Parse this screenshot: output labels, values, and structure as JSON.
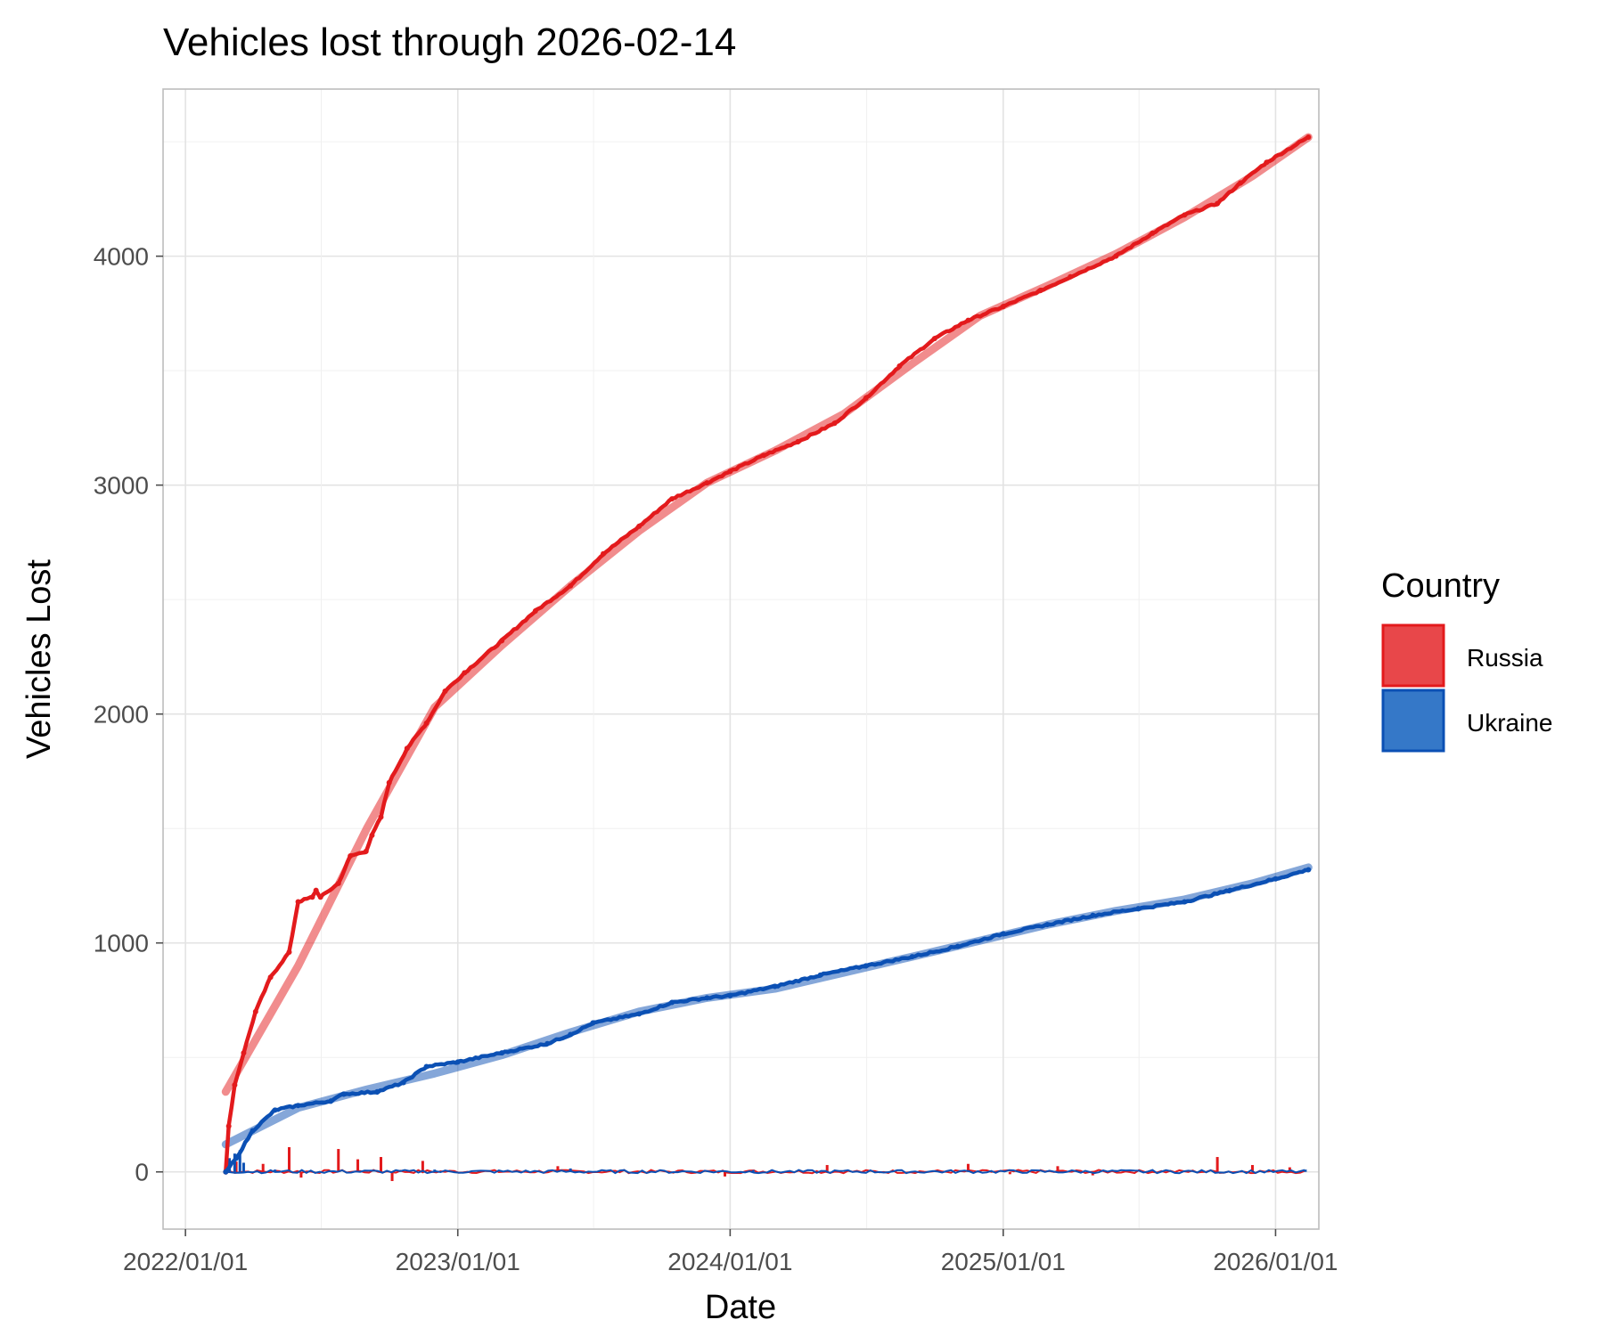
{
  "chart_data": {
    "type": "line",
    "title": "Vehicles lost through 2026-02-14",
    "xlabel": "Date",
    "ylabel": "Vehicles Lost",
    "grid": true,
    "legend": {
      "title": "Country",
      "placement": "right",
      "entries": [
        {
          "label": "Russia",
          "color": "#e31a1c",
          "fill": "#e8474a"
        },
        {
          "label": "Ukraine",
          "color": "#0b50b4",
          "fill": "#3578c8"
        }
      ]
    },
    "x_range": [
      "2021-12-02",
      "2026-02-28"
    ],
    "x_ticks": [
      "2022/01/01",
      "2023/01/01",
      "2024/01/01",
      "2025/01/01",
      "2026/01/01"
    ],
    "ylim": [
      -250,
      4730
    ],
    "y_ticks": [
      0,
      1000,
      2000,
      3000,
      4000
    ],
    "series": [
      {
        "name": "Russia",
        "kind": "cumulative",
        "color": "#e31a1c",
        "points": [
          [
            "2022-02-24",
            0
          ],
          [
            "2022-02-28",
            200
          ],
          [
            "2022-03-08",
            380
          ],
          [
            "2022-03-20",
            520
          ],
          [
            "2022-04-05",
            700
          ],
          [
            "2022-04-25",
            850
          ],
          [
            "2022-05-20",
            960
          ],
          [
            "2022-06-01",
            1180
          ],
          [
            "2022-06-20",
            1200
          ],
          [
            "2022-06-25",
            1230
          ],
          [
            "2022-07-01",
            1200
          ],
          [
            "2022-07-25",
            1260
          ],
          [
            "2022-08-10",
            1380
          ],
          [
            "2022-08-31",
            1400
          ],
          [
            "2022-09-08",
            1470
          ],
          [
            "2022-09-20",
            1550
          ],
          [
            "2022-10-01",
            1700
          ],
          [
            "2022-10-25",
            1850
          ],
          [
            "2022-11-20",
            1960
          ],
          [
            "2022-12-15",
            2100
          ],
          [
            "2023-01-10",
            2180
          ],
          [
            "2023-03-01",
            2320
          ],
          [
            "2023-04-15",
            2450
          ],
          [
            "2023-06-01",
            2560
          ],
          [
            "2023-07-15",
            2700
          ],
          [
            "2023-09-01",
            2820
          ],
          [
            "2023-10-15",
            2940
          ],
          [
            "2023-12-01",
            3010
          ],
          [
            "2024-01-01",
            3060
          ],
          [
            "2024-02-15",
            3130
          ],
          [
            "2024-04-01",
            3190
          ],
          [
            "2024-05-20",
            3270
          ],
          [
            "2024-07-01",
            3380
          ],
          [
            "2024-08-15",
            3520
          ],
          [
            "2024-10-01",
            3640
          ],
          [
            "2024-11-15",
            3720
          ],
          [
            "2025-01-01",
            3780
          ],
          [
            "2025-02-20",
            3850
          ],
          [
            "2025-04-01",
            3910
          ],
          [
            "2025-06-01",
            4000
          ],
          [
            "2025-07-20",
            4100
          ],
          [
            "2025-09-01",
            4180
          ],
          [
            "2025-10-15",
            4230
          ],
          [
            "2025-11-15",
            4320
          ],
          [
            "2025-12-20",
            4410
          ],
          [
            "2026-02-14",
            4520
          ]
        ],
        "trend": [
          [
            "2022-02-24",
            350
          ],
          [
            "2022-06-01",
            900
          ],
          [
            "2022-09-01",
            1500
          ],
          [
            "2022-12-01",
            2030
          ],
          [
            "2023-03-01",
            2300
          ],
          [
            "2023-06-01",
            2560
          ],
          [
            "2023-09-01",
            2800
          ],
          [
            "2023-12-01",
            3010
          ],
          [
            "2024-03-01",
            3150
          ],
          [
            "2024-06-01",
            3310
          ],
          [
            "2024-09-01",
            3530
          ],
          [
            "2024-12-01",
            3740
          ],
          [
            "2025-03-01",
            3870
          ],
          [
            "2025-06-01",
            4010
          ],
          [
            "2025-09-01",
            4170
          ],
          [
            "2025-12-01",
            4350
          ],
          [
            "2026-02-14",
            4520
          ]
        ],
        "daily": [
          [
            "2022-03-10",
            45
          ],
          [
            "2022-04-15",
            35
          ],
          [
            "2022-05-20",
            108
          ],
          [
            "2022-06-05",
            -25
          ],
          [
            "2022-07-25",
            100
          ],
          [
            "2022-08-20",
            55
          ],
          [
            "2022-09-20",
            65
          ],
          [
            "2022-10-05",
            -40
          ],
          [
            "2022-11-15",
            48
          ],
          [
            "2023-05-15",
            25
          ],
          [
            "2023-12-25",
            -20
          ],
          [
            "2024-05-10",
            30
          ],
          [
            "2024-11-15",
            35
          ],
          [
            "2025-01-10",
            -10
          ],
          [
            "2025-03-15",
            25
          ],
          [
            "2025-05-01",
            -15
          ],
          [
            "2025-10-15",
            65
          ],
          [
            "2025-12-01",
            30
          ],
          [
            "2026-01-20",
            20
          ]
        ]
      },
      {
        "name": "Ukraine",
        "kind": "cumulative",
        "color": "#0b50b4",
        "points": [
          [
            "2022-02-24",
            0
          ],
          [
            "2022-03-10",
            60
          ],
          [
            "2022-04-01",
            180
          ],
          [
            "2022-05-01",
            270
          ],
          [
            "2022-06-01",
            290
          ],
          [
            "2022-07-15",
            310
          ],
          [
            "2022-08-01",
            340
          ],
          [
            "2022-09-15",
            350
          ],
          [
            "2022-10-20",
            390
          ],
          [
            "2022-11-20",
            460
          ],
          [
            "2023-01-01",
            480
          ],
          [
            "2023-03-01",
            520
          ],
          [
            "2023-05-01",
            560
          ],
          [
            "2023-06-01",
            600
          ],
          [
            "2023-07-01",
            650
          ],
          [
            "2023-09-01",
            690
          ],
          [
            "2023-10-15",
            740
          ],
          [
            "2023-12-01",
            760
          ],
          [
            "2024-01-01",
            770
          ],
          [
            "2024-03-01",
            810
          ],
          [
            "2024-05-01",
            860
          ],
          [
            "2024-07-01",
            900
          ],
          [
            "2024-09-01",
            940
          ],
          [
            "2024-11-01",
            985
          ],
          [
            "2025-01-01",
            1040
          ],
          [
            "2025-03-01",
            1080
          ],
          [
            "2025-05-01",
            1120
          ],
          [
            "2025-07-01",
            1150
          ],
          [
            "2025-09-01",
            1180
          ],
          [
            "2025-11-01",
            1230
          ],
          [
            "2026-01-01",
            1280
          ],
          [
            "2026-02-14",
            1320
          ]
        ],
        "trend": [
          [
            "2022-02-24",
            120
          ],
          [
            "2022-06-01",
            280
          ],
          [
            "2022-09-01",
            360
          ],
          [
            "2022-12-01",
            430
          ],
          [
            "2023-03-01",
            510
          ],
          [
            "2023-06-01",
            610
          ],
          [
            "2023-09-01",
            700
          ],
          [
            "2023-12-01",
            760
          ],
          [
            "2024-03-01",
            800
          ],
          [
            "2024-06-01",
            870
          ],
          [
            "2024-09-01",
            940
          ],
          [
            "2024-12-01",
            1010
          ],
          [
            "2025-03-01",
            1080
          ],
          [
            "2025-06-01",
            1140
          ],
          [
            "2025-09-01",
            1190
          ],
          [
            "2025-12-01",
            1260
          ],
          [
            "2026-02-14",
            1330
          ]
        ],
        "daily": [
          [
            "2022-03-01",
            60
          ],
          [
            "2022-03-08",
            80
          ],
          [
            "2022-03-15",
            95
          ],
          [
            "2022-03-20",
            40
          ],
          [
            "2022-05-01",
            10
          ],
          [
            "2022-12-01",
            10
          ],
          [
            "2023-06-01",
            15
          ],
          [
            "2024-02-01",
            8
          ],
          [
            "2025-06-01",
            8
          ],
          [
            "2026-02-10",
            10
          ]
        ]
      }
    ]
  }
}
